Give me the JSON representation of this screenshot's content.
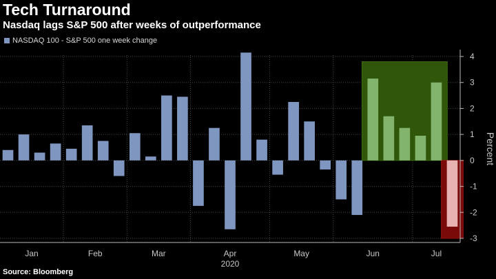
{
  "header": {
    "title": "Tech Turnaround",
    "subtitle": "Nasdaq lags S&P 500 after weeks of outperformance"
  },
  "source": "Source: Bloomberg",
  "colors": {
    "bar": "#7f97c0",
    "highlight_up_bg": "#2f5609",
    "highlight_up_bar": "#82b46d",
    "highlight_down_bg": "#7a0a0a",
    "highlight_down_bar": "#e8b2b2",
    "grid": "#4a4a4a"
  },
  "chart_data": {
    "type": "bar",
    "legend": "NASDAQ 100 - S&P 500 one week change",
    "ylabel": "Percent",
    "year_label": "2020",
    "ylim": [
      -3,
      4
    ],
    "yticks": [
      "4",
      "3",
      "2",
      "1",
      "0",
      "-1",
      "-2",
      "-3"
    ],
    "month_labels": [
      "Jan",
      "Feb",
      "Mar",
      "Apr",
      "May",
      "Jun",
      "Jul"
    ],
    "grid": true,
    "values": [
      0.4,
      1.0,
      0.3,
      0.65,
      0.45,
      1.35,
      0.75,
      -0.6,
      1.05,
      0.15,
      2.5,
      2.45,
      -1.75,
      1.25,
      -2.65,
      4.15,
      0.8,
      -0.55,
      2.25,
      1.5,
      -0.35,
      -1.5,
      -2.1,
      3.15,
      1.7,
      1.25,
      0.95,
      3.0,
      -2.55
    ],
    "highlights": [
      {
        "kind": "up",
        "from_index": 23,
        "to_index": 27,
        "ymin": 0,
        "ymax": 3.8
      },
      {
        "kind": "down",
        "from_index": 28,
        "to_index": 28,
        "ymin": -3,
        "ymax": 0
      }
    ]
  }
}
